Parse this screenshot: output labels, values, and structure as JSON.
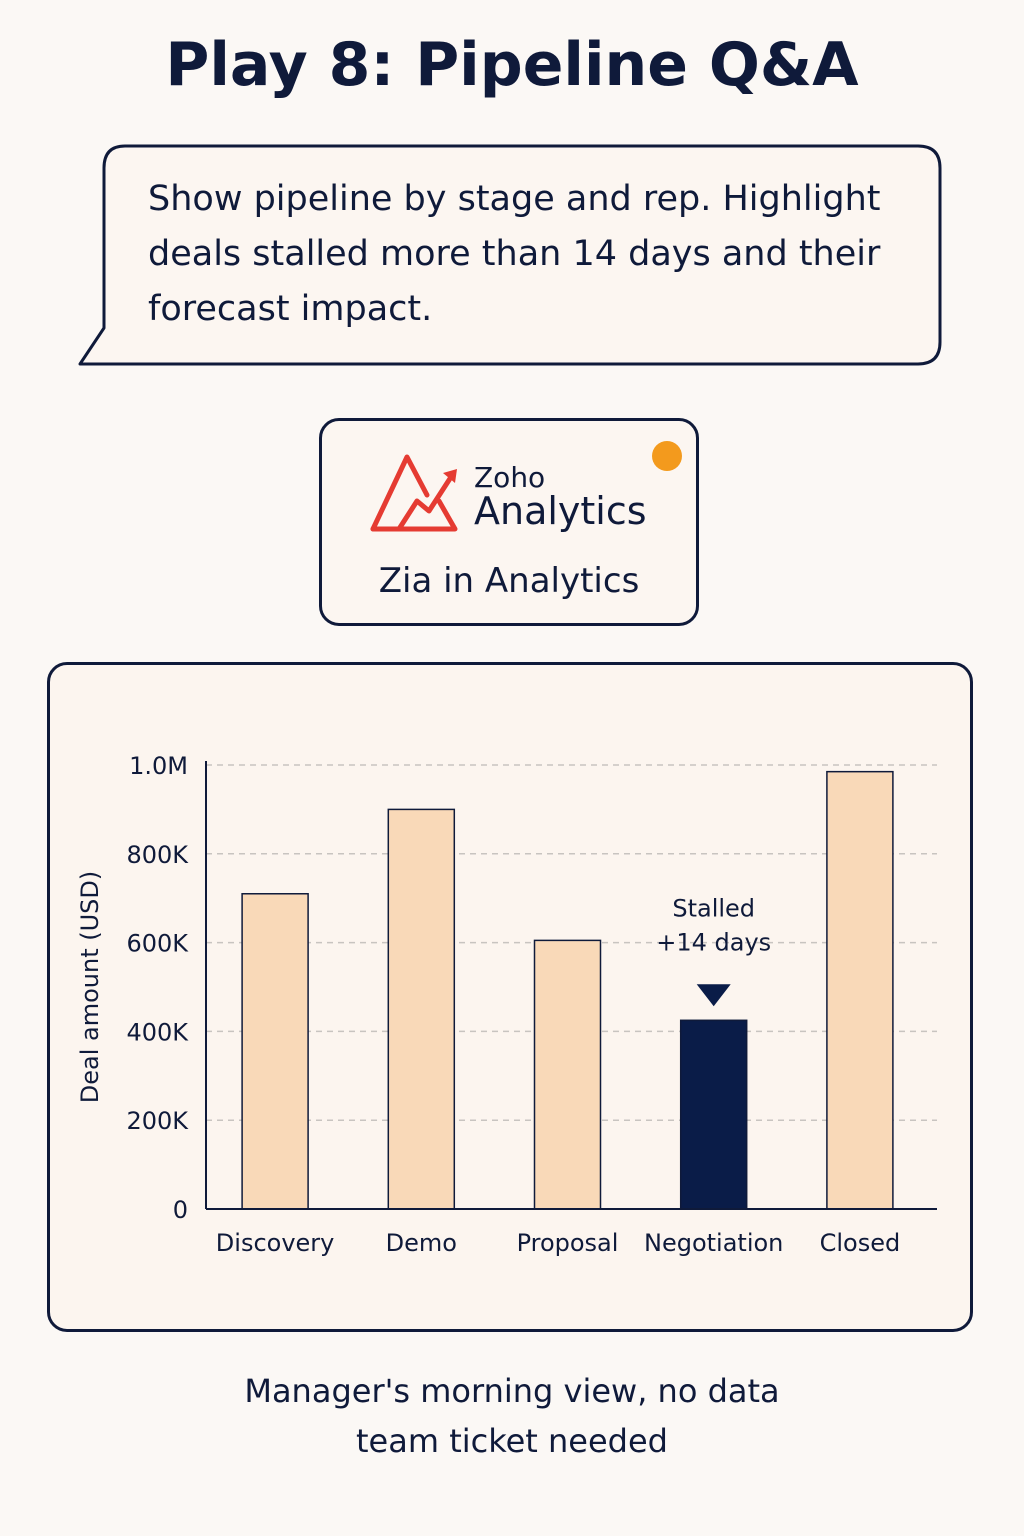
{
  "header": {
    "title": "Play 8: Pipeline Q&A"
  },
  "prompt_bubble": {
    "text": "Show pipeline by stage and rep. Highlight deals stalled more than 14 days and their forecast impact."
  },
  "logo_card": {
    "brand_small": "Zoho",
    "brand_large": "Analytics",
    "caption": "Zia in Analytics",
    "logo_icon": "zoho-analytics-logo-icon",
    "status_dot_color": "#f39a1d"
  },
  "chart_data": {
    "type": "bar",
    "categories": [
      "Discovery",
      "Demo",
      "Proposal",
      "Negotiation",
      "Closed"
    ],
    "values": [
      710000,
      900000,
      605000,
      425000,
      985000
    ],
    "ylabel": "Deal amount (USD)",
    "xlabel": "",
    "ylim": [
      0,
      1000000
    ],
    "y_ticks": [
      {
        "value": 0,
        "label": "0"
      },
      {
        "value": 200000,
        "label": "200K"
      },
      {
        "value": 400000,
        "label": "400K"
      },
      {
        "value": 600000,
        "label": "600K"
      },
      {
        "value": 800000,
        "label": "800K"
      },
      {
        "value": 1000000,
        "label": "1.0M"
      }
    ],
    "grid": true,
    "highlight_category": "Negotiation",
    "annotation": {
      "category": "Negotiation",
      "lines": [
        "Stalled",
        "+14 days"
      ]
    },
    "colors": {
      "bar": "#f9d9b8",
      "highlight": "#0a1c48",
      "axis": "#0f1a3a",
      "grid": "#c8c4c0"
    }
  },
  "footer": {
    "line1": "Manager's morning view, no data",
    "line2": "team ticket needed"
  }
}
